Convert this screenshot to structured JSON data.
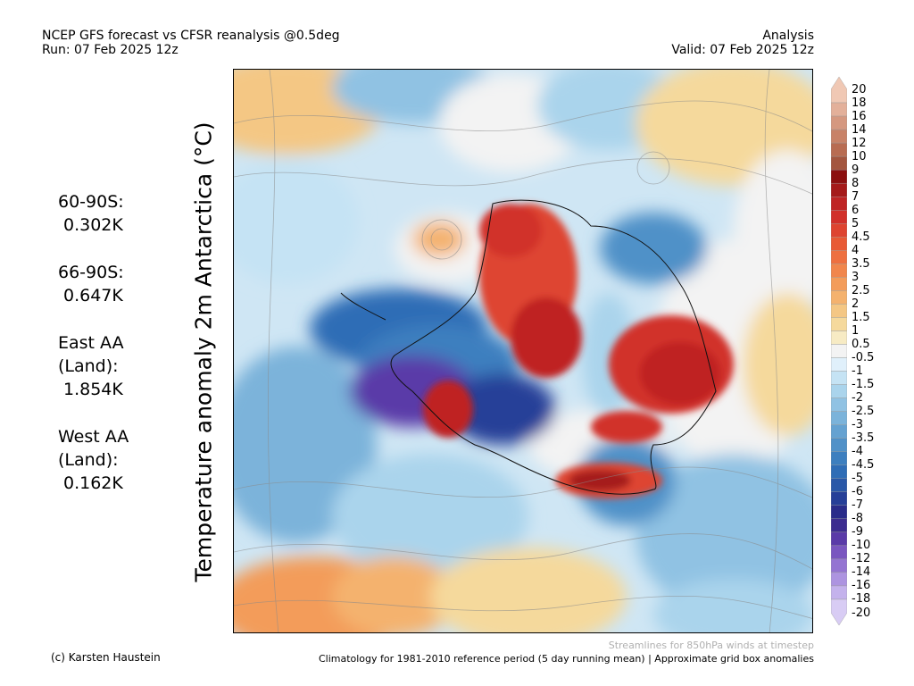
{
  "header": {
    "title_line1": "NCEP GFS forecast vs CFSR reanalysis @0.5deg",
    "title_line2": "Run: 07 Feb 2025 12z",
    "right_line1": "Analysis",
    "right_line2": "Valid: 07 Feb 2025 12z"
  },
  "y_label": "Temperature anomaly 2m Antarctica (°C)",
  "stats": [
    {
      "lines": [
        "60-90S:",
        "0.302K"
      ]
    },
    {
      "lines": [
        "66-90S:",
        "0.647K"
      ]
    },
    {
      "lines": [
        "East AA",
        "(Land):",
        "1.854K"
      ]
    },
    {
      "lines": [
        "West AA",
        "(Land):",
        "0.162K"
      ]
    }
  ],
  "colorbar": {
    "ticks": [
      "20",
      "18",
      "16",
      "14",
      "12",
      "10",
      "9",
      "8",
      "7",
      "6",
      "5",
      "4.5",
      "4",
      "3.5",
      "3",
      "2.5",
      "2",
      "1.5",
      "1",
      "0.5",
      "-0.5",
      "-1",
      "-1.5",
      "-2",
      "-2.5",
      "-3",
      "-3.5",
      "-4",
      "-4.5",
      "-5",
      "-6",
      "-7",
      "-8",
      "-9",
      "-10",
      "-12",
      "-14",
      "-16",
      "-18",
      "-20"
    ],
    "colors": [
      "#f0c8b4",
      "#e3b09a",
      "#d59880",
      "#c88268",
      "#b86c52",
      "#a4563f",
      "#8c0f0f",
      "#a51a1a",
      "#bf2424",
      "#d1302a",
      "#de4430",
      "#e85a35",
      "#ee7040",
      "#f1864c",
      "#f39c5a",
      "#f4b26e",
      "#f4c784",
      "#f5d99c",
      "#f7ebc4",
      "#f3f3f3",
      "#e0f0fb",
      "#c5e3f4",
      "#aad4ec",
      "#90c2e3",
      "#7bb3da",
      "#65a2d1",
      "#5091c8",
      "#3d7fbf",
      "#2f6db6",
      "#2a58a8",
      "#263f98",
      "#2a2c8a",
      "#3c2c90",
      "#5a3aa8",
      "#7a56c0",
      "#9474d2",
      "#ad94e0",
      "#c4b2ec",
      "#d8ccf4"
    ]
  },
  "footer": {
    "note": "Streamlines for 850hPa winds at timestep",
    "credit": "(c) Karsten Haustein",
    "climatology": "Climatology for 1981-2010 reference period (5 day running mean) | Approximate grid box anomalies"
  }
}
